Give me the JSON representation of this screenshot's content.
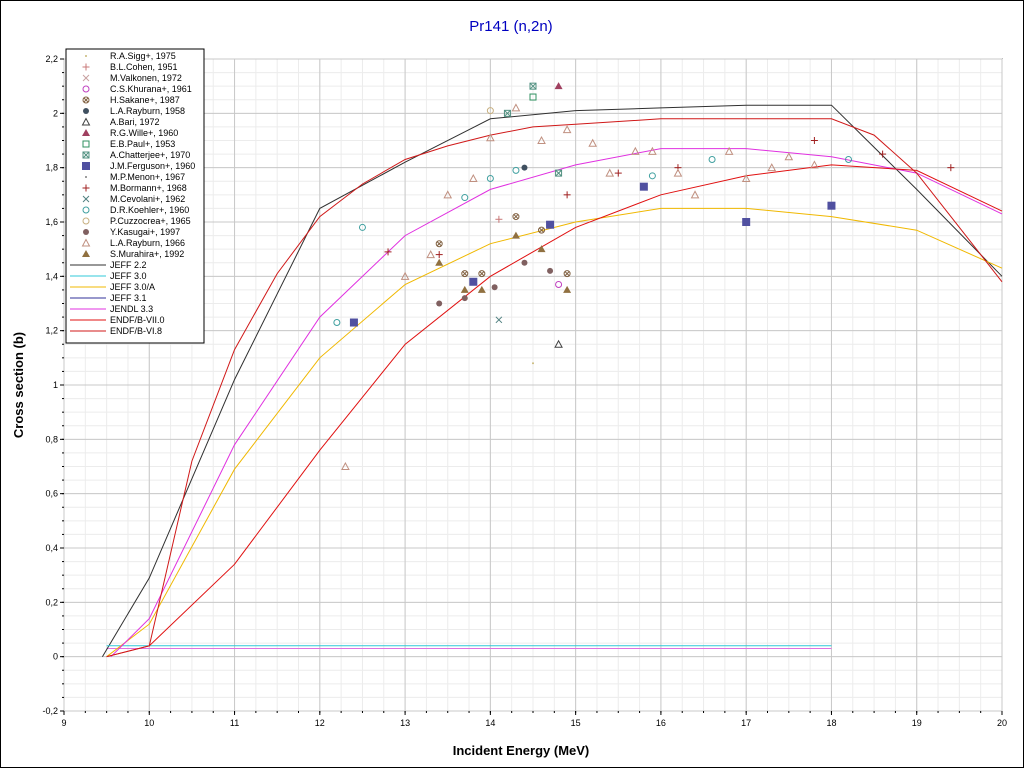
{
  "chart_data": {
    "type": "scatter",
    "title": "Pr141 (n,2n)",
    "xlabel": "Incident Energy (MeV)",
    "ylabel": "Cross section (b)",
    "xlim": [
      9,
      20
    ],
    "ylim": [
      -0.2,
      2.2
    ],
    "xticks": [
      9,
      10,
      11,
      12,
      13,
      14,
      15,
      16,
      17,
      18,
      19,
      20
    ],
    "xtick_labels": [
      "9",
      "10",
      "11",
      "12",
      "13",
      "14",
      "15",
      "16",
      "17",
      "18",
      "19",
      "20"
    ],
    "yticks": [
      -0.2,
      0,
      0.2,
      0.4,
      0.6,
      0.8,
      1,
      1.2,
      1.4,
      1.6,
      1.8,
      2,
      2.2
    ],
    "ytick_labels": [
      "-0,2",
      "0",
      "0,2",
      "0,4",
      "0,6",
      "0,8",
      "1",
      "1,2",
      "1,4",
      "1,6",
      "1,8",
      "2",
      "2,2"
    ],
    "grid": true,
    "legend_position": "top-left",
    "scatter_series": [
      {
        "name": "R.A.Sigg+, 1975",
        "marker": "dot",
        "color": "#c8b878",
        "points": [
          [
            14.5,
            1.08
          ]
        ]
      },
      {
        "name": "B.L.Cohen, 1951",
        "marker": "plus",
        "color": "#c87878",
        "points": [
          [
            14.1,
            1.61
          ]
        ]
      },
      {
        "name": "M.Valkonen, 1972",
        "marker": "x",
        "color": "#c8a0a0",
        "points": []
      },
      {
        "name": "C.S.Khurana+, 1961",
        "marker": "circle",
        "color": "#c040c0",
        "points": [
          [
            14.8,
            1.37
          ]
        ]
      },
      {
        "name": "H.Sakane+, 1987",
        "marker": "circlex",
        "color": "#806040",
        "points": [
          [
            13.4,
            1.52
          ],
          [
            13.7,
            1.41
          ],
          [
            13.9,
            1.41
          ],
          [
            14.3,
            1.62
          ],
          [
            14.6,
            1.57
          ],
          [
            14.9,
            1.41
          ]
        ]
      },
      {
        "name": "L.A.Rayburn, 1958",
        "marker": "dotfilled",
        "color": "#405060",
        "points": [
          [
            14.4,
            1.8
          ]
        ]
      },
      {
        "name": "A.Bari, 1972",
        "marker": "triangle",
        "color": "#404040",
        "points": [
          [
            14.8,
            1.15
          ]
        ]
      },
      {
        "name": "R.G.Wille+, 1960",
        "marker": "trianglefilled",
        "color": "#a04060",
        "points": [
          [
            14.8,
            2.1
          ]
        ]
      },
      {
        "name": "E.B.Paul+, 1953",
        "marker": "square",
        "color": "#309060",
        "points": [
          [
            14.5,
            2.06
          ]
        ]
      },
      {
        "name": "A.Chatterjee+, 1970",
        "marker": "squarex",
        "color": "#509080",
        "points": [
          [
            14.2,
            2.0
          ],
          [
            14.5,
            2.1
          ],
          [
            14.8,
            1.78
          ]
        ]
      },
      {
        "name": "J.M.Ferguson+, 1960",
        "marker": "squarefilled",
        "color": "#5050a0",
        "points": [
          [
            12.4,
            1.23
          ],
          [
            13.8,
            1.38
          ],
          [
            14.7,
            1.59
          ],
          [
            15.8,
            1.73
          ],
          [
            17.0,
            1.6
          ],
          [
            18.0,
            1.66
          ]
        ]
      },
      {
        "name": "M.P.Menon+, 1967",
        "marker": "dot",
        "color": "#808080",
        "points": []
      },
      {
        "name": "M.Bormann+, 1968",
        "marker": "plus",
        "color": "#a02020",
        "points": [
          [
            12.8,
            1.49
          ],
          [
            13.4,
            1.48
          ],
          [
            14.9,
            1.7
          ],
          [
            15.5,
            1.78
          ],
          [
            16.2,
            1.8
          ],
          [
            17.8,
            1.9
          ],
          [
            18.6,
            1.85
          ],
          [
            19.4,
            1.8
          ]
        ]
      },
      {
        "name": "M.Cevolani+, 1962",
        "marker": "x",
        "color": "#508080",
        "points": [
          [
            14.1,
            1.24
          ]
        ]
      },
      {
        "name": "D.R.Koehler+, 1960",
        "marker": "circle",
        "color": "#40a0a0",
        "points": [
          [
            12.2,
            1.23
          ],
          [
            12.5,
            1.58
          ],
          [
            13.7,
            1.69
          ],
          [
            14.0,
            1.76
          ],
          [
            14.3,
            1.79
          ],
          [
            15.9,
            1.77
          ],
          [
            16.6,
            1.83
          ],
          [
            18.2,
            1.83
          ]
        ]
      },
      {
        "name": "P.Cuzzocrea+, 1965",
        "marker": "circle",
        "color": "#c8b080",
        "points": [
          [
            14.0,
            2.01
          ]
        ]
      },
      {
        "name": "Y.Kasugai+, 1997",
        "marker": "dotfilled",
        "color": "#806060",
        "points": [
          [
            13.4,
            1.3
          ],
          [
            13.7,
            1.32
          ],
          [
            14.05,
            1.36
          ],
          [
            14.4,
            1.45
          ],
          [
            14.7,
            1.42
          ]
        ]
      },
      {
        "name": "L.A.Rayburn, 1966",
        "marker": "triangle",
        "color": "#c09080",
        "points": [
          [
            12.3,
            0.7
          ],
          [
            13.0,
            1.4
          ],
          [
            13.3,
            1.48
          ],
          [
            13.5,
            1.7
          ],
          [
            13.8,
            1.76
          ],
          [
            14.0,
            1.91
          ],
          [
            14.3,
            2.02
          ],
          [
            14.6,
            1.9
          ],
          [
            14.9,
            1.94
          ],
          [
            15.2,
            1.89
          ],
          [
            15.4,
            1.78
          ],
          [
            15.7,
            1.86
          ],
          [
            15.9,
            1.86
          ],
          [
            16.2,
            1.78
          ],
          [
            16.4,
            1.7
          ],
          [
            16.8,
            1.86
          ],
          [
            17.0,
            1.76
          ],
          [
            17.3,
            1.8
          ],
          [
            17.5,
            1.84
          ],
          [
            17.8,
            1.81
          ]
        ]
      },
      {
        "name": "S.Murahira+, 1992",
        "marker": "trianglefilled",
        "color": "#907040",
        "points": [
          [
            13.4,
            1.45
          ],
          [
            13.7,
            1.35
          ],
          [
            13.9,
            1.35
          ],
          [
            14.3,
            1.55
          ],
          [
            14.6,
            1.5
          ],
          [
            14.9,
            1.35
          ]
        ]
      }
    ],
    "line_series": [
      {
        "name": "JEFF 2.2",
        "color": "#303030",
        "points": [
          [
            9.45,
            0.0
          ],
          [
            10.0,
            0.29
          ],
          [
            11.0,
            1.02
          ],
          [
            12.0,
            1.65
          ],
          [
            13.0,
            1.82
          ],
          [
            14.0,
            1.98
          ],
          [
            15.0,
            2.01
          ],
          [
            16.0,
            2.02
          ],
          [
            17.0,
            2.03
          ],
          [
            18.0,
            2.03
          ],
          [
            19.0,
            1.72
          ],
          [
            20.0,
            1.4
          ]
        ]
      },
      {
        "name": "JEFF 3.0",
        "color": "#30c8d8",
        "points": [
          [
            9.5,
            0.04
          ],
          [
            18.0,
            0.04
          ]
        ]
      },
      {
        "name": "JEFF 3.0/A",
        "color": "#f0b800",
        "points": [
          [
            9.5,
            0.0
          ],
          [
            10.0,
            0.12
          ],
          [
            11.0,
            0.69
          ],
          [
            12.0,
            1.1
          ],
          [
            13.0,
            1.37
          ],
          [
            14.0,
            1.52
          ],
          [
            15.0,
            1.6
          ],
          [
            16.0,
            1.65
          ],
          [
            17.0,
            1.65
          ],
          [
            18.0,
            1.62
          ],
          [
            19.0,
            1.57
          ],
          [
            20.0,
            1.43
          ]
        ]
      },
      {
        "name": "JEFF 3.1",
        "color": "#303098",
        "points": []
      },
      {
        "name": "JENDL 3.3",
        "color": "#e030e0",
        "points": [
          [
            9.55,
            0.0
          ],
          [
            10.0,
            0.14
          ],
          [
            11.0,
            0.78
          ],
          [
            12.0,
            1.25
          ],
          [
            13.0,
            1.55
          ],
          [
            14.0,
            1.72
          ],
          [
            15.0,
            1.81
          ],
          [
            16.0,
            1.87
          ],
          [
            17.0,
            1.87
          ],
          [
            18.0,
            1.84
          ],
          [
            19.0,
            1.78
          ],
          [
            20.0,
            1.63
          ]
        ]
      },
      {
        "name": "ENDF/B-VII.0",
        "color": "#e01010",
        "points": [
          [
            9.5,
            0.0
          ],
          [
            10.0,
            0.04
          ],
          [
            11.0,
            0.34
          ],
          [
            12.0,
            0.76
          ],
          [
            13.0,
            1.15
          ],
          [
            14.0,
            1.4
          ],
          [
            15.0,
            1.58
          ],
          [
            16.0,
            1.7
          ],
          [
            17.0,
            1.77
          ],
          [
            18.0,
            1.81
          ],
          [
            19.0,
            1.79
          ],
          [
            20.0,
            1.64
          ]
        ]
      },
      {
        "name": "ENDF/B-VI.8",
        "color": "#d01818",
        "points": [
          [
            9.5,
            0.0
          ],
          [
            10.0,
            0.04
          ],
          [
            10.5,
            0.72
          ],
          [
            11.0,
            1.13
          ],
          [
            11.5,
            1.41
          ],
          [
            12.0,
            1.62
          ],
          [
            12.5,
            1.74
          ],
          [
            13.0,
            1.83
          ],
          [
            13.5,
            1.88
          ],
          [
            14.0,
            1.92
          ],
          [
            14.5,
            1.95
          ],
          [
            15.0,
            1.96
          ],
          [
            16.0,
            1.98
          ],
          [
            17.0,
            1.98
          ],
          [
            18.0,
            1.98
          ],
          [
            18.5,
            1.92
          ],
          [
            19.0,
            1.78
          ],
          [
            19.5,
            1.58
          ],
          [
            20.0,
            1.38
          ]
        ]
      }
    ],
    "extra_lines": [
      {
        "color": "#e070e0",
        "points": [
          [
            9.5,
            0.03
          ],
          [
            18.0,
            0.03
          ]
        ]
      }
    ]
  }
}
